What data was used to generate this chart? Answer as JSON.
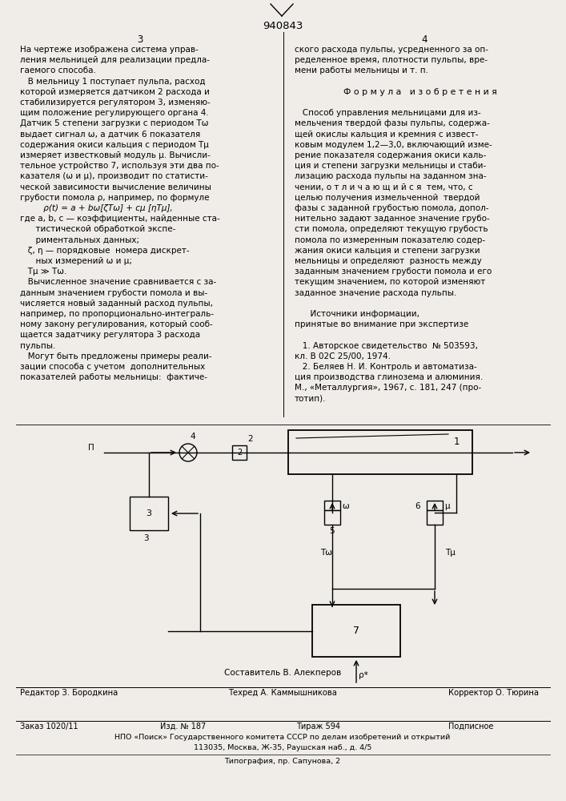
{
  "patent_number": "940843",
  "page_numbers": [
    "3",
    "4"
  ],
  "col_left_text": [
    "На чертеже изображена система управ-",
    "ления мельницей для реализации предла-",
    "гаемого способа.",
    "   В мельницу 1 поступает пульпа, расход",
    "которой измеряется датчиком 2 расхода и",
    "стабилизируется регулятором 3, изменяю-",
    "щим положение регулирующего органа 4.",
    "Датчик 5 степени загрузки с периодом Tω",
    "выдает сигнал ω, а датчик 6 показателя",
    "содержания окиси кальция с периодом Tμ",
    "измеряет известковый модуль μ. Вычисли-",
    "тельное устройство 7, используя эти два по-",
    "казателя (ω и μ), производит по статисти-",
    "ческой зависимости вычисление величины",
    "грубости помола ρ, например, по формуле",
    "         ρ(t) = a + bω[ζTω] + cμ [ηTμ],",
    "где a, b, c — коэффициенты, найденные ста-",
    "      тистической обработкой экспе-",
    "      риментальных данных;",
    "   ζ, η — порядковые  номера дискрет-",
    "      ных измерений ω и μ;",
    "   Tμ ≫ Tω.",
    "   Вычисленное значение сравнивается с за-",
    "данным значением грубости помола и вы-",
    "числяется новый заданный расход пульпы,",
    "например, по пропорционально-интеграль-",
    "ному закону регулирования, который сооб-",
    "щается задатчику регулятора 3 расхода",
    "пульпы.",
    "   Могут быть предложены примеры реали-",
    "зации способа с учетом  дополнительных",
    "показателей работы мельницы:  фактиче-"
  ],
  "col_right_text": [
    "ского расхода пульпы, усредненного за оп-",
    "ределенное время, плотности пульпы, вре-",
    "мени работы мельницы и т. п.",
    "",
    "Ф о р м у л а   и з о б р е т е н и я",
    "",
    "   Способ управления мельницами для из-",
    "мельчения твердой фазы пульпы, содержа-",
    "щей окислы кальция и кремния с извест-",
    "ковым модулем 1,2—3,0, включающий изме-",
    "рение показателя содержания окиси каль-",
    "ция и степени загрузки мельницы и стаби-",
    "лизацию расхода пульпы на заданном зна-",
    "чении, о т л и ч а ю щ и й с я  тем, что, с",
    "целью получения измельченной  твердой",
    "фазы с заданной грубостью помола, допол-",
    "нительно задают заданное значение грубо-",
    "сти помола, определяют текущую грубость",
    "помола по измеренным показателю содер-",
    "жания окиси кальция и степени загрузки",
    "мельницы и определяют  разность между",
    "заданным значением грубости помола и его",
    "текущим значением, по которой изменяют",
    "заданное значение расхода пульпы.",
    "",
    "      Источники информации,",
    "принятые во внимание при экспертизе",
    "",
    "   1. Авторское свидетельство  № 503593,",
    "кл. В 02С 25/00, 1974.",
    "   2. Беляев Н. И. Контроль и автоматиза-",
    "ция производства глинозема и алюминия.",
    "М., «Металлургия», 1967, с. 181, 247 (про-",
    "тотип)."
  ],
  "footer_composer": "Составитель В. Алекперов",
  "footer_editor": "Редактор З. Бородкина",
  "footer_techred": "Техред А. Каммышникова",
  "footer_corrector": "Корректор О. Тюрина",
  "footer_order": "Заказ 1020/11",
  "footer_izd": "Изд. № 187",
  "footer_tirazh": "Тираж 594",
  "footer_podpisnoe": "Подписное",
  "footer_npo": "НПО «Поиск» Государственного комитета СССР по делам изобретений и открытий",
  "footer_address": "113035, Москва, Ж-35, Раушская наб., д. 4/5",
  "footer_typography": "Типография, пр. Сапунова, 2",
  "bg_color": "#f0ede8"
}
